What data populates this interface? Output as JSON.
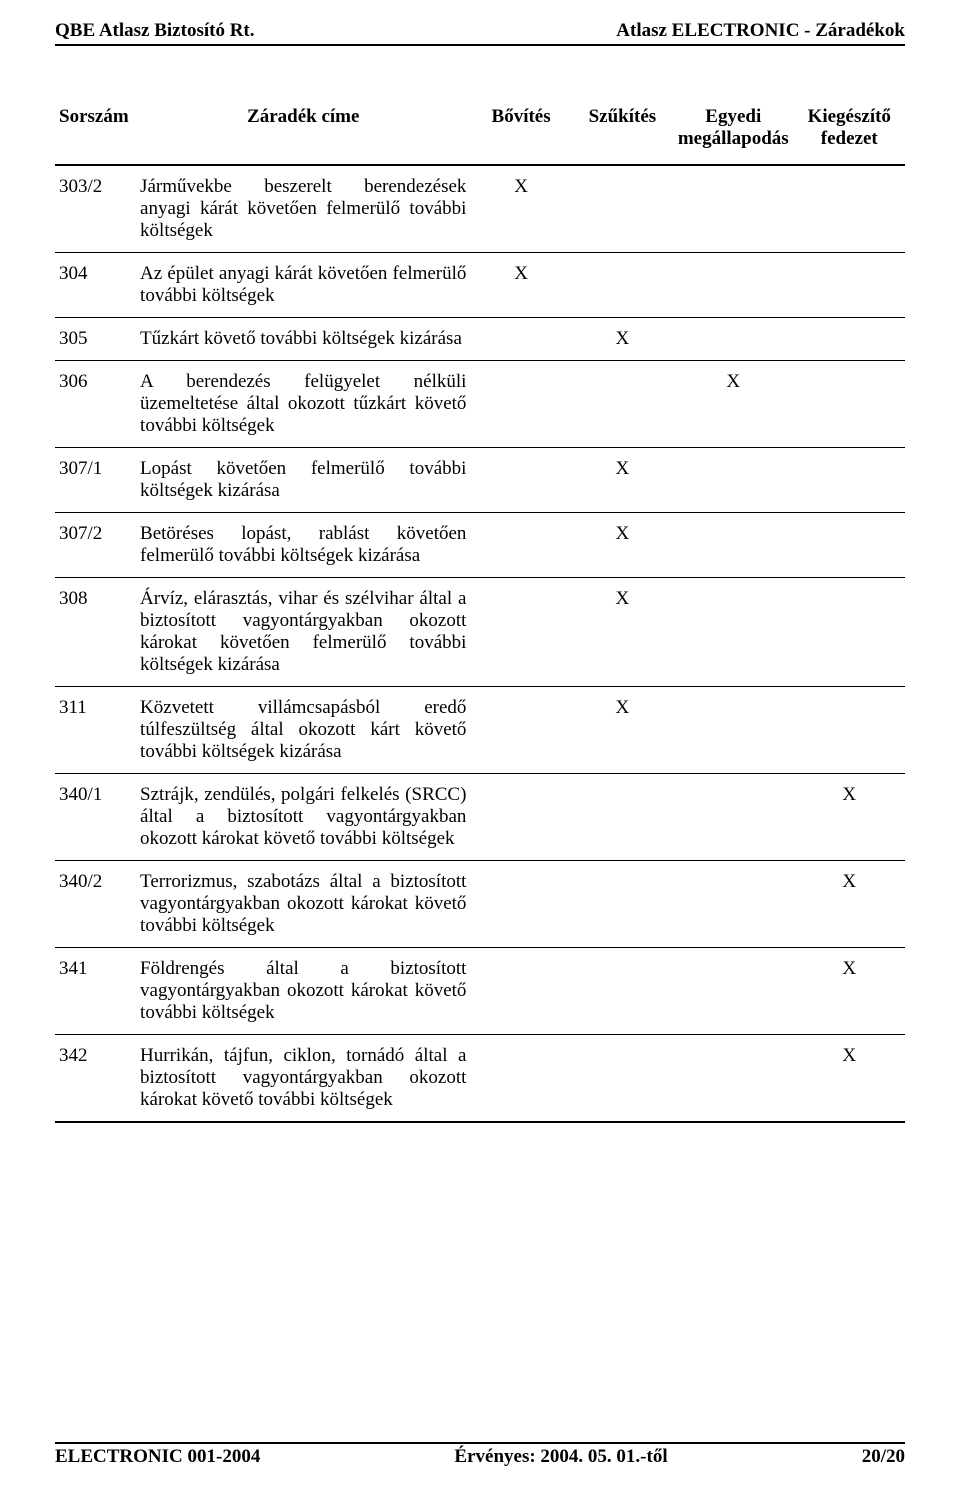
{
  "header": {
    "left": "QBE Atlasz Biztosító Rt.",
    "right": "Atlasz ELECTRONIC - Záradékok"
  },
  "table": {
    "columns": {
      "sorszam": "Sorszám",
      "cim": "Záradék címe",
      "bovites": "Bővítés",
      "szukites": "Szűkítés",
      "egyedi_l1": "Egyedi",
      "egyedi_l2": "megállapodás",
      "kieg_l1": "Kiegészítő",
      "kieg_l2": "fedezet"
    },
    "rows": [
      {
        "num": "303/2",
        "title": "Járművekbe beszerelt berendezések anyagi kárát követően felmerülő további költségek",
        "bovites": "X",
        "szukites": "",
        "egyedi": "",
        "kieg": ""
      },
      {
        "num": "304",
        "title": "Az épület anyagi kárát követően felmerülő további költségek",
        "bovites": "X",
        "szukites": "",
        "egyedi": "",
        "kieg": ""
      },
      {
        "num": "305",
        "title": "Tűzkárt követő további költségek kizárása",
        "bovites": "",
        "szukites": "X",
        "egyedi": "",
        "kieg": ""
      },
      {
        "num": "306",
        "title": "A berendezés felügyelet nélküli üzemeltetése által okozott tűzkárt követő további költségek",
        "bovites": "",
        "szukites": "",
        "egyedi": "X",
        "kieg": ""
      },
      {
        "num": "307/1",
        "title": "Lopást követően felmerülő további költségek kizárása",
        "bovites": "",
        "szukites": "X",
        "egyedi": "",
        "kieg": ""
      },
      {
        "num": "307/2",
        "title": "Betöréses lopást, rablást követően felmerülő további költségek kizárása",
        "bovites": "",
        "szukites": "X",
        "egyedi": "",
        "kieg": ""
      },
      {
        "num": "308",
        "title": "Árvíz, elárasztás, vihar és szélvihar által a biztosított vagyontárgyakban okozott károkat követően felmerülő további költségek kizárása",
        "bovites": "",
        "szukites": "X",
        "egyedi": "",
        "kieg": ""
      },
      {
        "num": "311",
        "title": "Közvetett villámcsapásból eredő túlfeszültség által okozott kárt követő további költségek kizárása",
        "bovites": "",
        "szukites": "X",
        "egyedi": "",
        "kieg": ""
      },
      {
        "num": "340/1",
        "title": "Sztrájk, zendülés, polgári felkelés (SRCC) által a biztosított vagyontárgyakban okozott károkat követő további költségek",
        "bovites": "",
        "szukites": "",
        "egyedi": "",
        "kieg": "X"
      },
      {
        "num": "340/2",
        "title": "Terrorizmus, szabotázs által a biztosított vagyontárgyakban okozott károkat követő további költségek",
        "bovites": "",
        "szukites": "",
        "egyedi": "",
        "kieg": "X"
      },
      {
        "num": "341",
        "title": "Földrengés által a biztosított vagyontárgyakban okozott károkat követő további költségek",
        "bovites": "",
        "szukites": "",
        "egyedi": "",
        "kieg": "X"
      },
      {
        "num": "342",
        "title": "Hurrikán, tájfun, ciklon, tornádó által a biztosított vagyontárgyakban okozott károkat követő további költségek",
        "bovites": "",
        "szukites": "",
        "egyedi": "",
        "kieg": "X"
      }
    ]
  },
  "footer": {
    "left": "ELECTRONIC 001-2004",
    "center": "Érvényes: 2004. 05. 01.-től",
    "right": "20/20"
  }
}
